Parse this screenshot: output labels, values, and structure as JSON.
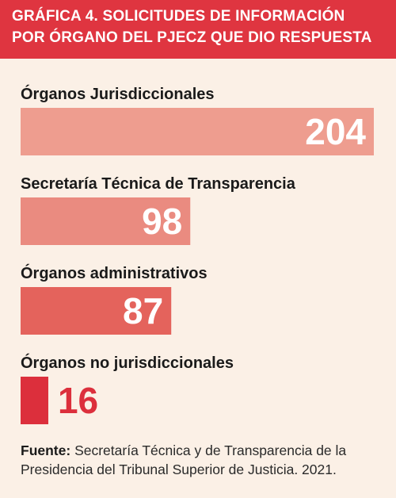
{
  "title": {
    "line1": "GRÁFICA 4. SOLICITUDES DE INFORMACIÓN",
    "line2": "POR ÓRGANO DEL PJECZ QUE DIO RESPUESTA"
  },
  "source": {
    "label": "Fuente:",
    "text": "Secretaría Técnica y de Transparencia de la Presidencia del Tribunal Superior de Justicia. 2021."
  },
  "colors": {
    "header": "#df3540",
    "background": "#fbf0e6",
    "bars": [
      "#ee9d8f",
      "#ea8b80",
      "#e4635c",
      "#dc2f3c"
    ]
  },
  "chart_data": {
    "type": "bar",
    "orientation": "horizontal",
    "title": "GRÁFICA 4. SOLICITUDES DE INFORMACIÓN POR ÓRGANO DEL PJECZ QUE DIO RESPUESTA",
    "categories": [
      "Órganos Jurisdiccionales",
      "Secretaría Técnica de Transparencia",
      "Órganos administrativos",
      "Órganos no jurisdiccionales"
    ],
    "values": [
      204,
      98,
      87,
      16
    ],
    "data_labels": [
      "204",
      "98",
      "87",
      "16"
    ],
    "xlabel": "",
    "ylabel": "",
    "grid": false,
    "legend": "none"
  }
}
